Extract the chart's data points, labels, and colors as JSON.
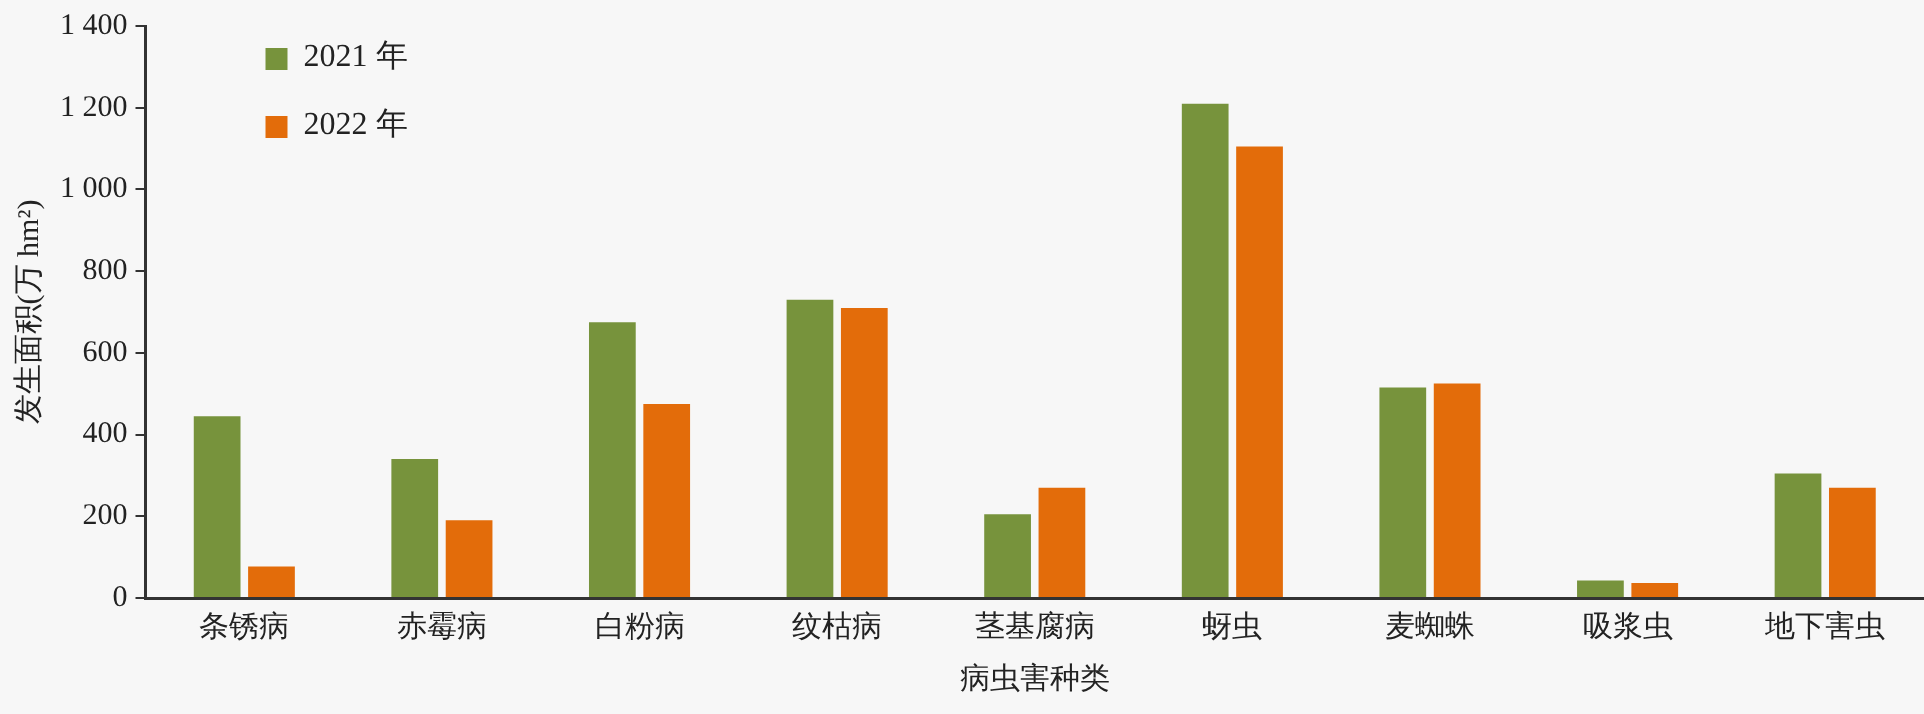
{
  "chart_data": {
    "type": "bar",
    "xlabel": "病虫害种类",
    "ylabel": "发生面积(万 hm²)",
    "categories": [
      "条锈病",
      "赤霉病",
      "白粉病",
      "纹枯病",
      "茎基腐病",
      "蚜虫",
      "麦蜘蛛",
      "吸浆虫",
      "地下害虫"
    ],
    "series": [
      {
        "name": "2021 年",
        "color": "#77933c",
        "values": [
          445,
          340,
          675,
          730,
          205,
          1210,
          515,
          43,
          305
        ]
      },
      {
        "name": "2022 年",
        "color": "#e36c0a",
        "values": [
          77,
          190,
          475,
          710,
          270,
          1105,
          525,
          37,
          270
        ]
      }
    ],
    "ylim": [
      0,
      1400
    ],
    "yticks": [
      0,
      200,
      400,
      600,
      800,
      {
        "value": 1000,
        "label": "1 000"
      },
      {
        "value": 1200,
        "label": "1 200"
      },
      {
        "value": 1400,
        "label": "1 400"
      }
    ],
    "grid": false,
    "legend": "top left"
  }
}
